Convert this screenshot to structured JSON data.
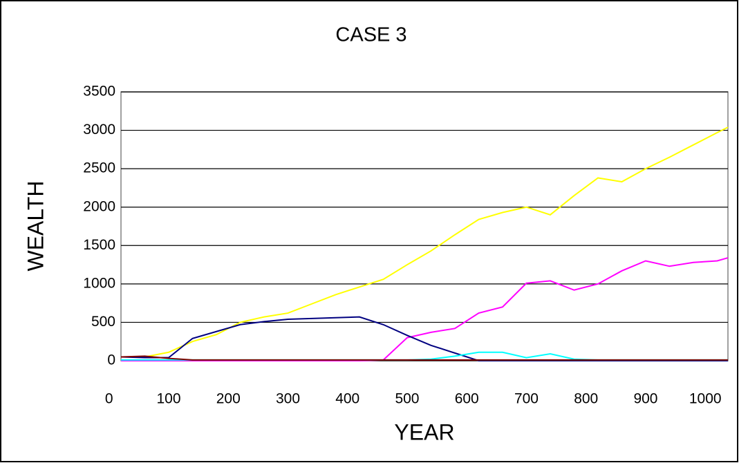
{
  "chart_data": {
    "type": "line",
    "title": "CASE 3",
    "x_label": "YEAR",
    "y_label": "WEALTH",
    "x": [
      20,
      60,
      100,
      140,
      180,
      220,
      260,
      300,
      340,
      380,
      420,
      460,
      500,
      540,
      580,
      620,
      660,
      700,
      740,
      780,
      820,
      860,
      900,
      940,
      980,
      1020,
      1038
    ],
    "series": [
      {
        "color": "#ffff00",
        "values": [
          50,
          50,
          110,
          250,
          340,
          500,
          570,
          620,
          740,
          860,
          960,
          1060,
          1250,
          1430,
          1640,
          1840,
          1930,
          2000,
          1900,
          2150,
          2380,
          2330,
          2500,
          2650,
          2810,
          2970,
          3040
        ]
      },
      {
        "color": "#ff00ff",
        "values": [
          0,
          0,
          0,
          0,
          0,
          0,
          0,
          0,
          0,
          0,
          0,
          10,
          300,
          370,
          420,
          620,
          700,
          1010,
          1040,
          920,
          1000,
          1170,
          1300,
          1230,
          1280,
          1300,
          1340
        ]
      },
      {
        "color": "#000080",
        "values": [
          50,
          40,
          40,
          290,
          380,
          470,
          510,
          540,
          550,
          560,
          570,
          470,
          330,
          200,
          100,
          0,
          0,
          0,
          0,
          0,
          0,
          0,
          0,
          0,
          0,
          0,
          0
        ]
      },
      {
        "color": "#00ffff",
        "values": [
          10,
          10,
          10,
          10,
          10,
          10,
          10,
          10,
          10,
          10,
          10,
          10,
          10,
          20,
          60,
          110,
          110,
          40,
          90,
          20,
          10,
          10,
          10,
          10,
          10,
          10,
          10
        ]
      },
      {
        "color": "#800000",
        "values": [
          50,
          60,
          30,
          10,
          10,
          10,
          10,
          10,
          10,
          10,
          10,
          10,
          10,
          10,
          10,
          10,
          10,
          10,
          10,
          10,
          10,
          10,
          10,
          10,
          10,
          10,
          10
        ]
      }
    ],
    "xlim": [
      20,
      1038
    ],
    "xticks": [
      0,
      100,
      200,
      300,
      400,
      500,
      600,
      700,
      800,
      900,
      1000
    ],
    "ylim": [
      0,
      3500
    ],
    "yticks": [
      0,
      500,
      1000,
      1500,
      2000,
      2500,
      3000,
      3500
    ],
    "grid": true
  }
}
